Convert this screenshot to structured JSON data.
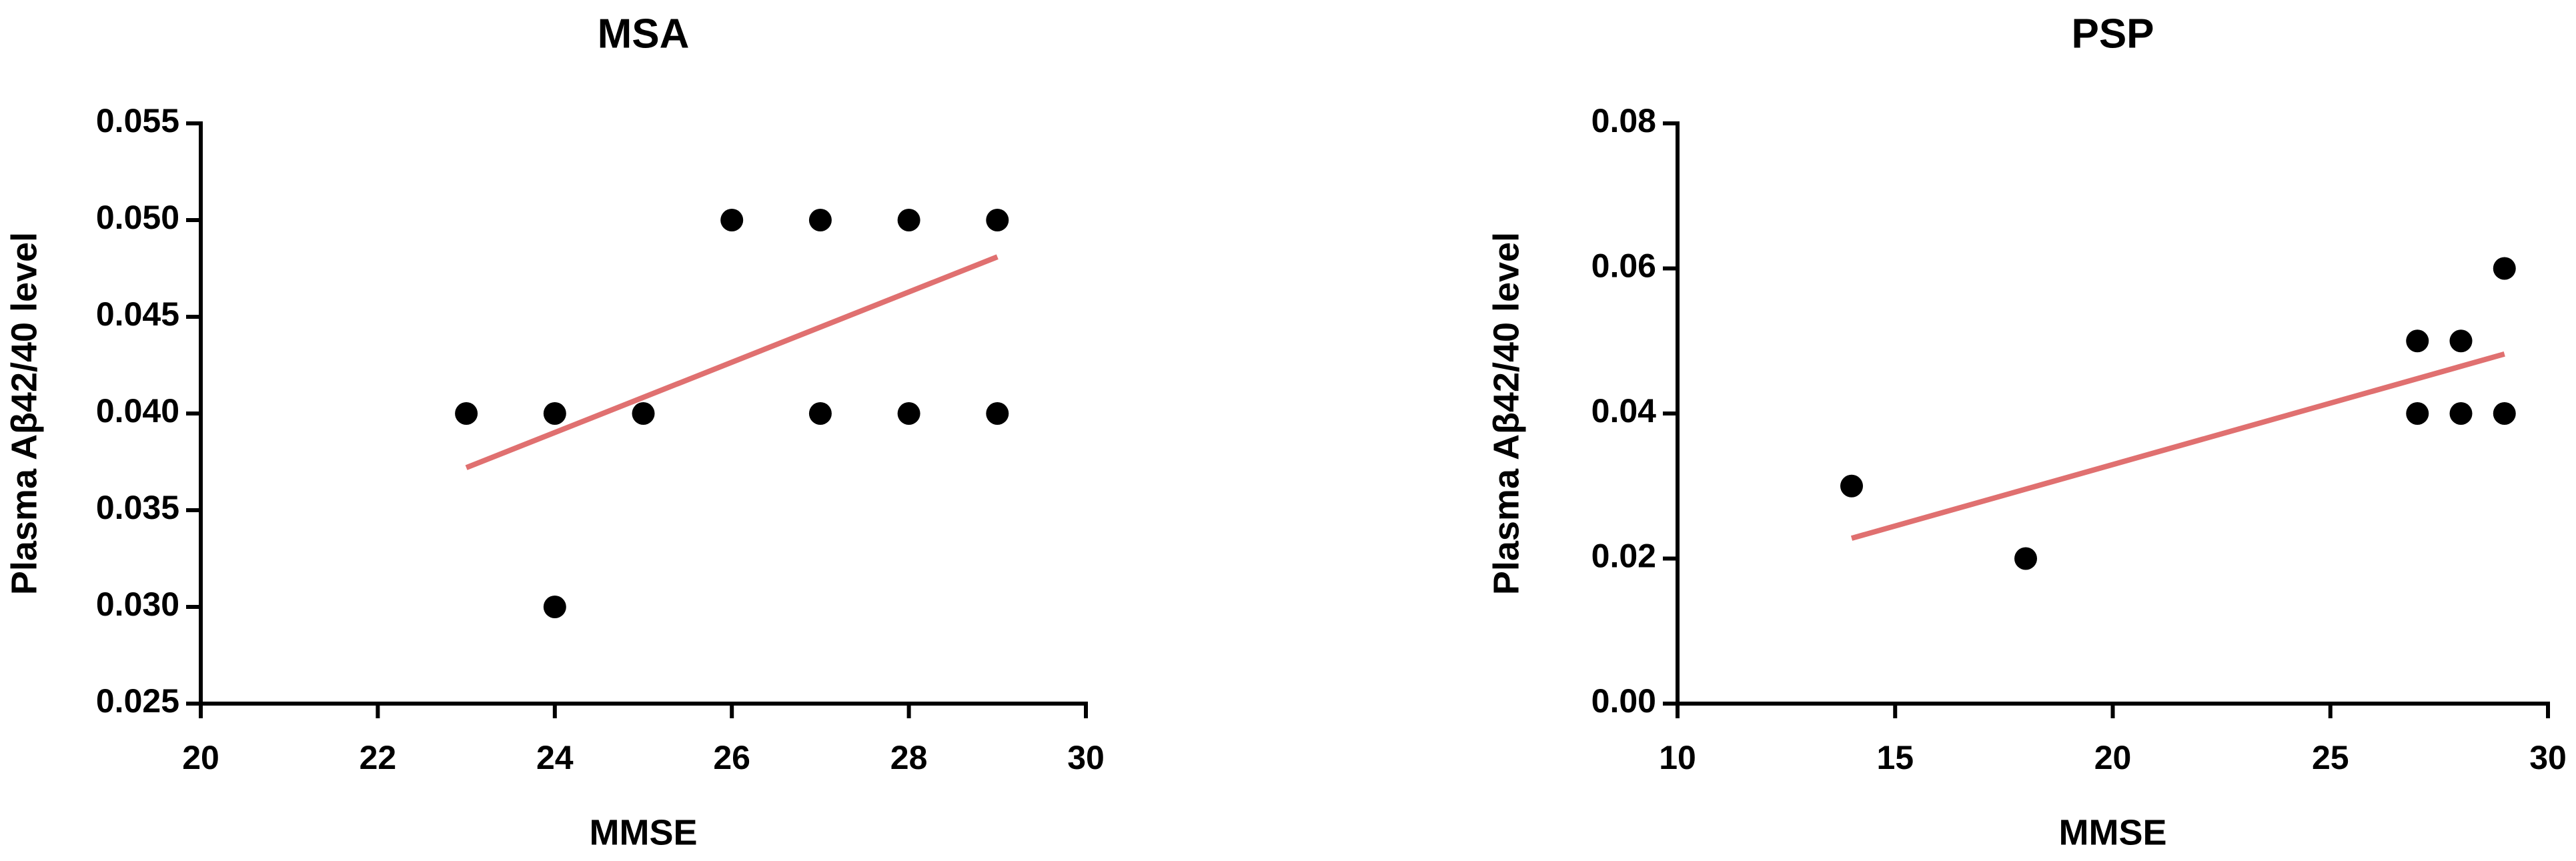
{
  "chart_data": [
    {
      "type": "scatter",
      "title": "MSA",
      "xlabel": "MMSE",
      "ylabel": "Plasma Aβ42/40 level",
      "x": [
        23,
        24,
        24,
        25,
        26,
        27,
        27,
        28,
        28,
        29,
        29
      ],
      "values": [
        0.04,
        0.04,
        0.03,
        0.04,
        0.05,
        0.05,
        0.04,
        0.05,
        0.04,
        0.05,
        0.04
      ],
      "color": "#000000",
      "trend_line": {
        "x": [
          23,
          29
        ],
        "values": [
          0.0372,
          0.0481
        ],
        "color": "#e07070"
      },
      "xlim": [
        20,
        30
      ],
      "xticks": [
        20,
        22,
        24,
        26,
        28,
        30
      ],
      "ylim": [
        0.025,
        0.055
      ],
      "yticks": [
        {
          "value": 0.025,
          "label": "0.025"
        },
        {
          "value": 0.03,
          "label": "0.030"
        },
        {
          "value": 0.035,
          "label": "0.035"
        },
        {
          "value": 0.04,
          "label": "0.040"
        },
        {
          "value": 0.045,
          "label": "0.045"
        },
        {
          "value": 0.05,
          "label": "0.050"
        },
        {
          "value": 0.055,
          "label": "0.055"
        }
      ]
    },
    {
      "type": "scatter",
      "title": "PSP",
      "xlabel": "MMSE",
      "ylabel": "Plasma Aβ42/40 level",
      "x": [
        14,
        18,
        27,
        27,
        28,
        28,
        29,
        29
      ],
      "values": [
        0.03,
        0.02,
        0.05,
        0.04,
        0.05,
        0.04,
        0.06,
        0.04
      ],
      "color": "#000000",
      "trend_line": {
        "x": [
          14,
          29
        ],
        "values": [
          0.0228,
          0.0482
        ],
        "color": "#e07070"
      },
      "xlim": [
        10,
        30
      ],
      "xticks": [
        10,
        15,
        20,
        25,
        30
      ],
      "ylim": [
        0,
        0.08
      ],
      "yticks": [
        {
          "value": 0,
          "label": "0.00"
        },
        {
          "value": 0.02,
          "label": "0.02"
        },
        {
          "value": 0.04,
          "label": "0.04"
        },
        {
          "value": 0.06,
          "label": "0.06"
        },
        {
          "value": 0.08,
          "label": "0.08"
        }
      ]
    }
  ]
}
